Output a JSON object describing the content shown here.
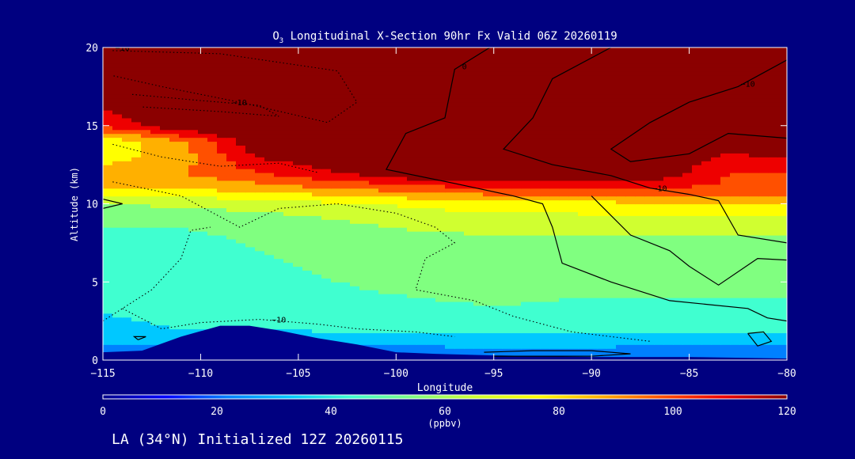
{
  "chart_data": {
    "type": "heatmap",
    "title_prefix": "O",
    "title_subscript": "3",
    "title_rest": " Longitudinal X-Section 90hr  Fx Valid 06Z 20260119",
    "xlabel": "Longitude",
    "ylabel": "Altitude (km)",
    "xlim": [
      -115,
      -80
    ],
    "ylim": [
      0,
      20
    ],
    "x_ticks": [
      -115,
      -110,
      -105,
      -100,
      -95,
      -90,
      -85,
      -80
    ],
    "x_tick_labels": [
      "−115",
      "−110",
      "−105",
      "−100",
      "−95",
      "−90",
      "−85",
      "−80"
    ],
    "y_ticks": [
      0,
      5,
      10,
      15,
      20
    ],
    "y_tick_labels": [
      "0",
      "5",
      "10",
      "15",
      "20"
    ],
    "colorbar": {
      "range": [
        0,
        120
      ],
      "ticks": [
        0,
        20,
        40,
        60,
        80,
        100,
        120
      ],
      "tick_labels": [
        "0",
        "20",
        "40",
        "60",
        "80",
        "100",
        "120"
      ],
      "units": "(ppbv)",
      "colors": [
        "#00008b",
        "#0000ff",
        "#0080ff",
        "#00c8ff",
        "#40ffd0",
        "#80ff80",
        "#d0ff30",
        "#ffff00",
        "#ffb000",
        "#ff5000",
        "#ee0000",
        "#8b0000"
      ]
    },
    "terrain_color": "#00008b",
    "terrain_km": [
      [
        -115,
        0.5
      ],
      [
        -113,
        0.6
      ],
      [
        -111,
        1.5
      ],
      [
        -109,
        2.2
      ],
      [
        -107.5,
        2.2
      ],
      [
        -106,
        1.9
      ],
      [
        -104,
        1.4
      ],
      [
        -102,
        1.0
      ],
      [
        -100,
        0.5
      ],
      [
        -98,
        0.4
      ],
      [
        -95,
        0.3
      ],
      [
        -90,
        0.2
      ],
      [
        -85,
        0.2
      ],
      [
        -80,
        0.1
      ]
    ],
    "field": {
      "lons": [
        -115,
        -111,
        -107,
        -103,
        -99,
        -95,
        -91,
        -87,
        -83,
        -80
      ],
      "alts": [
        0,
        2,
        4,
        6,
        8,
        9,
        10,
        11,
        12,
        13,
        14,
        15,
        17,
        20
      ],
      "values_ppbv": [
        [
          20,
          20,
          20,
          20,
          20,
          20,
          20,
          20,
          20,
          20
        ],
        [
          38,
          40,
          40,
          42,
          42,
          44,
          44,
          42,
          42,
          42
        ],
        [
          42,
          44,
          45,
          48,
          50,
          52,
          50,
          50,
          50,
          50
        ],
        [
          44,
          46,
          48,
          52,
          55,
          55,
          55,
          55,
          55,
          55
        ],
        [
          48,
          48,
          52,
          55,
          58,
          60,
          60,
          60,
          60,
          60
        ],
        [
          52,
          52,
          56,
          60,
          64,
          66,
          66,
          68,
          68,
          68
        ],
        [
          60,
          62,
          64,
          68,
          72,
          75,
          76,
          78,
          78,
          80
        ],
        [
          80,
          80,
          85,
          90,
          95,
          100,
          100,
          100,
          98,
          98
        ],
        [
          85,
          90,
          100,
          110,
          120,
          120,
          120,
          120,
          100,
          100
        ],
        [
          75,
          85,
          110,
          120,
          120,
          120,
          120,
          120,
          108,
          110
        ],
        [
          72,
          88,
          120,
          120,
          120,
          120,
          120,
          120,
          120,
          118
        ],
        [
          100,
          120,
          120,
          120,
          120,
          120,
          120,
          120,
          120,
          120
        ],
        [
          120,
          120,
          120,
          120,
          120,
          120,
          120,
          120,
          120,
          120
        ],
        [
          120,
          120,
          120,
          120,
          120,
          120,
          120,
          120,
          120,
          120
        ]
      ]
    },
    "contours": [
      {
        "style": "dotted",
        "label": "−10",
        "label_at": [
          -114,
          19.8
        ],
        "points": [
          [
            -114.5,
            19.8
          ],
          [
            -109,
            19.6
          ],
          [
            -103,
            18.5
          ],
          [
            -102,
            16.5
          ],
          [
            -103.5,
            15.2
          ],
          [
            -108,
            16.5
          ],
          [
            -112,
            17.5
          ],
          [
            -114.5,
            18.2
          ]
        ]
      },
      {
        "style": "dotted",
        "label": "−10",
        "label_at": [
          -108,
          16.3
        ],
        "points": [
          [
            -113.5,
            17.0
          ],
          [
            -110,
            16.6
          ],
          [
            -107,
            16.3
          ],
          [
            -106,
            15.6
          ],
          [
            -109,
            15.9
          ],
          [
            -113,
            16.2
          ]
        ]
      },
      {
        "style": "dotted",
        "label": "",
        "label_at": null,
        "points": [
          [
            -114.5,
            13.8
          ],
          [
            -112,
            13.0
          ],
          [
            -109,
            12.4
          ],
          [
            -106,
            12.6
          ],
          [
            -104,
            12.0
          ]
        ]
      },
      {
        "style": "dotted",
        "label": "",
        "label_at": null,
        "points": [
          [
            -114.5,
            11.4
          ],
          [
            -111,
            10.5
          ],
          [
            -108,
            8.5
          ],
          [
            -106,
            9.7
          ],
          [
            -103,
            10.0
          ],
          [
            -100,
            9.4
          ],
          [
            -98,
            8.5
          ],
          [
            -97,
            7.5
          ],
          [
            -98.5,
            6.5
          ],
          [
            -99,
            4.5
          ],
          [
            -96,
            3.8
          ],
          [
            -94,
            2.8
          ],
          [
            -91,
            1.8
          ],
          [
            -87,
            1.2
          ]
        ]
      },
      {
        "style": "dotted",
        "label": "−10",
        "label_at": [
          -106,
          2.4
        ],
        "points": [
          [
            -115,
            2.5
          ],
          [
            -112.5,
            4.5
          ],
          [
            -111,
            6.5
          ],
          [
            -110.5,
            8.3
          ],
          [
            -109.5,
            8.5
          ]
        ]
      },
      {
        "style": "dotted",
        "label": "",
        "label_at": null,
        "points": [
          [
            -114,
            3.3
          ],
          [
            -112,
            2.0
          ],
          [
            -110,
            2.4
          ],
          [
            -107,
            2.6
          ],
          [
            -104,
            2.3
          ],
          [
            -102,
            2.0
          ],
          [
            -99,
            1.8
          ],
          [
            -97,
            1.5
          ]
        ]
      },
      {
        "style": "solid",
        "label": "0",
        "label_at": [
          -96.5,
          18.6
        ],
        "points": [
          [
            -95.2,
            20.0
          ],
          [
            -97,
            18.6
          ],
          [
            -97.5,
            15.5
          ],
          [
            -99.5,
            14.5
          ],
          [
            -100.5,
            12.2
          ],
          [
            -97,
            11.3
          ],
          [
            -94,
            10.5
          ],
          [
            -92.5,
            10.0
          ],
          [
            -92,
            8.5
          ],
          [
            -91.5,
            6.2
          ],
          [
            -89,
            5.0
          ],
          [
            -86,
            3.8
          ],
          [
            -82,
            3.3
          ],
          [
            -81,
            2.7
          ],
          [
            -80,
            2.5
          ]
        ]
      },
      {
        "style": "solid",
        "label": "−10",
        "label_at": [
          -86.5,
          10.8
        ],
        "points": [
          [
            -89,
            20.0
          ],
          [
            -92,
            18.0
          ],
          [
            -93,
            15.5
          ],
          [
            -94.5,
            13.5
          ],
          [
            -92,
            12.5
          ],
          [
            -89,
            11.8
          ],
          [
            -87,
            11.0
          ],
          [
            -85,
            10.6
          ],
          [
            -83.5,
            10.2
          ],
          [
            -82.5,
            8.0
          ],
          [
            -80,
            7.5
          ]
        ]
      },
      {
        "style": "solid",
        "label": "−10",
        "label_at": [
          -82,
          17.5
        ],
        "points": [
          [
            -80,
            19.2
          ],
          [
            -82.5,
            17.5
          ],
          [
            -85,
            16.5
          ],
          [
            -87,
            15.2
          ],
          [
            -89,
            13.5
          ],
          [
            -88,
            12.7
          ],
          [
            -85,
            13.2
          ],
          [
            -83,
            14.5
          ],
          [
            -80,
            14.2
          ]
        ]
      },
      {
        "style": "solid",
        "label": "",
        "label_at": null,
        "points": [
          [
            -90,
            10.5
          ],
          [
            -88,
            8.0
          ],
          [
            -86,
            7.0
          ],
          [
            -85,
            6.0
          ],
          [
            -83.5,
            4.8
          ],
          [
            -81.5,
            6.5
          ],
          [
            -80,
            6.4
          ]
        ]
      },
      {
        "style": "solid",
        "label": "",
        "label_at": null,
        "points": [
          [
            -115,
            10.3
          ],
          [
            -114,
            10.0
          ],
          [
            -115,
            9.7
          ]
        ]
      },
      {
        "style": "solid",
        "label": "",
        "label_at": null,
        "points": [
          [
            -113.2,
            1.3
          ],
          [
            -112.8,
            1.5
          ],
          [
            -113.4,
            1.5
          ],
          [
            -113.2,
            1.3
          ]
        ]
      },
      {
        "style": "solid",
        "label": "",
        "label_at": null,
        "points": [
          [
            -82,
            1.7
          ],
          [
            -81.5,
            0.9
          ],
          [
            -80.8,
            1.2
          ],
          [
            -81.2,
            1.8
          ],
          [
            -82,
            1.7
          ]
        ]
      },
      {
        "style": "solid",
        "label": "",
        "label_at": null,
        "points": [
          [
            -95.5,
            0.5
          ],
          [
            -93,
            0.6
          ],
          [
            -90,
            0.6
          ],
          [
            -88,
            0.4
          ],
          [
            -90,
            0.25
          ],
          [
            -95,
            0.25
          ]
        ]
      }
    ],
    "grid": false,
    "legend_placement": "bottom colorbar"
  },
  "footer": {
    "caption": "LA (34°N) Initialized 12Z 20260115"
  }
}
